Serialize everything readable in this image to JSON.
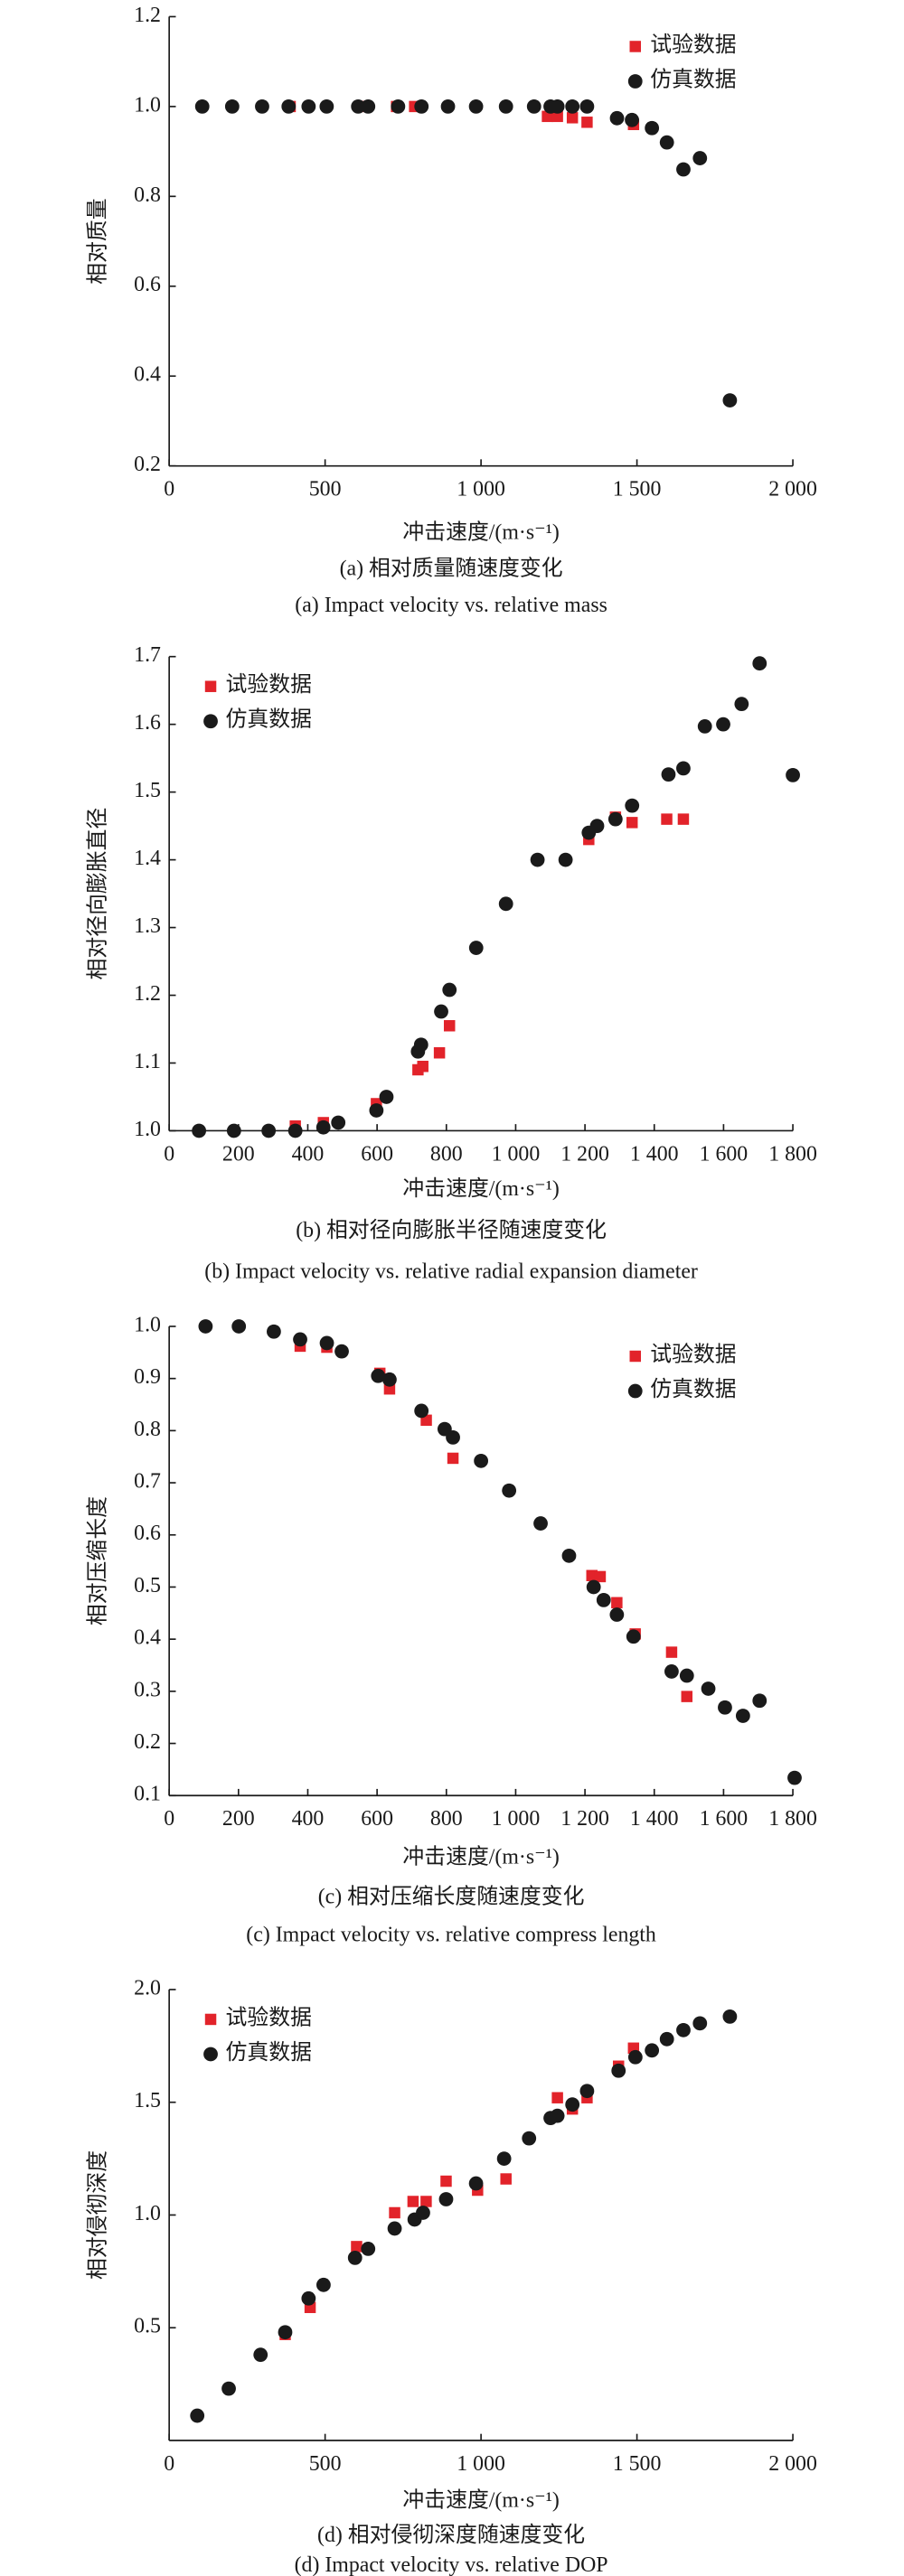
{
  "chart_data": [
    {
      "type": "scatter",
      "title": "(a) 相对质量随速度变化",
      "subtitle": "(a) Impact velocity vs. relative mass",
      "x_label": "冲击速度/(m·s⁻¹)",
      "y_label": "相对质量",
      "legend": "upper right",
      "xlim": [
        0,
        2000
      ],
      "xticks": [
        0,
        500,
        {
          "value": 1000,
          "label": "1 000"
        },
        {
          "value": 1500,
          "label": "1 500"
        },
        {
          "value": 2000,
          "label": "2 000"
        }
      ],
      "ylim": [
        0.2,
        1.2
      ],
      "yticks": [
        0.2,
        0.4,
        0.6,
        0.8,
        {
          "value": 1,
          "label": "1.0"
        },
        1.2
      ],
      "series": [
        {
          "name": "试验数据",
          "color": "#e2232a",
          "marker": "square",
          "x": [
            388,
            628,
            729,
            787,
            1213,
            1245,
            1293,
            1340,
            1489
          ],
          "values": [
            1.0,
            1.0,
            1.0,
            1.0,
            0.978,
            0.978,
            0.975,
            0.965,
            0.96
          ]
        },
        {
          "name": "仿真数据",
          "color": "#1a1a1a",
          "marker": "circle",
          "x": [
            106,
            202,
            298,
            383,
            447,
            505,
            606,
            638,
            734,
            809,
            894,
            984,
            1080,
            1170,
            1223,
            1245,
            1293,
            1340,
            1436,
            1484,
            1548,
            1596,
            1649,
            1702,
            1798
          ],
          "values": [
            1.0,
            1.0,
            1.0,
            1.0,
            1.0,
            1.0,
            1.0,
            1.0,
            1.0,
            1.0,
            1.0,
            1.0,
            1.0,
            1.0,
            1.0,
            1.0,
            1.0,
            1.0,
            0.974,
            0.97,
            0.952,
            0.92,
            0.86,
            0.885,
            0.346
          ]
        }
      ]
    },
    {
      "type": "scatter",
      "title": "(b) 相对径向膨胀半径随速度变化",
      "subtitle": "(b) Impact velocity vs. relative radial expansion diameter",
      "x_label": "冲击速度/(m·s⁻¹)",
      "y_label": "相对径向膨胀直径",
      "legend": "upper left",
      "xlim": [
        0,
        1800
      ],
      "xticks": [
        0,
        200,
        400,
        600,
        800,
        {
          "value": 1000,
          "label": "1 000"
        },
        {
          "value": 1200,
          "label": "1 200"
        },
        {
          "value": 1400,
          "label": "1 400"
        },
        {
          "value": 1600,
          "label": "1 600"
        },
        {
          "value": 1800,
          "label": "1 800"
        }
      ],
      "ylim": [
        1.0,
        1.7
      ],
      "yticks": [
        {
          "value": 1,
          "label": "1.0"
        },
        1.1,
        1.2,
        1.3,
        1.4,
        1.5,
        1.6,
        1.7
      ],
      "series": [
        {
          "name": "试验数据",
          "color": "#e2232a",
          "marker": "square",
          "x": [
            364,
            445,
            598,
            718,
            732,
            780,
            809,
            1211,
            1288,
            1336,
            1436,
            1484
          ],
          "values": [
            1.007,
            1.012,
            1.04,
            1.09,
            1.095,
            1.115,
            1.155,
            1.43,
            1.463,
            1.455,
            1.46,
            1.46
          ]
        },
        {
          "name": "仿真数据",
          "color": "#1a1a1a",
          "marker": "circle",
          "x": [
            86,
            187,
            287,
            364,
            445,
            488,
            598,
            627,
            718,
            727,
            785,
            809,
            886,
            972,
            1063,
            1144,
            1211,
            1235,
            1288,
            1336,
            1441,
            1484,
            1546,
            1599,
            1652,
            1704,
            1800
          ],
          "values": [
            1.0,
            1.0,
            1.0,
            1.0,
            1.005,
            1.012,
            1.03,
            1.05,
            1.117,
            1.127,
            1.176,
            1.208,
            1.27,
            1.335,
            1.4,
            1.4,
            1.44,
            1.45,
            1.46,
            1.48,
            1.526,
            1.535,
            1.597,
            1.6,
            1.63,
            1.69,
            1.525
          ]
        }
      ]
    },
    {
      "type": "scatter",
      "title": "(c) 相对压缩长度随速度变化",
      "subtitle": "(c) Impact velocity vs. relative compress length",
      "x_label": "冲击速度/(m·s⁻¹)",
      "y_label": "相对压缩长度",
      "legend": "upper right",
      "xlim": [
        0,
        1800
      ],
      "xticks": [
        0,
        200,
        400,
        600,
        800,
        {
          "value": 1000,
          "label": "1 000"
        },
        {
          "value": 1200,
          "label": "1 200"
        },
        {
          "value": 1400,
          "label": "1 400"
        },
        {
          "value": 1600,
          "label": "1 600"
        },
        {
          "value": 1800,
          "label": "1 800"
        }
      ],
      "ylim": [
        0.1,
        1.0
      ],
      "yticks": [
        0.1,
        0.2,
        0.3,
        0.4,
        0.5,
        0.6,
        0.7,
        0.8,
        0.9,
        {
          "value": 1,
          "label": "1.0"
        }
      ],
      "series": [
        {
          "name": "试验数据",
          "color": "#e2232a",
          "marker": "square",
          "x": [
            378,
            455,
            608,
            636,
            742,
            819,
            1220,
            1244,
            1292,
            1345,
            1450,
            1494
          ],
          "values": [
            0.962,
            0.96,
            0.91,
            0.88,
            0.82,
            0.747,
            0.522,
            0.52,
            0.47,
            0.41,
            0.375,
            0.29
          ]
        },
        {
          "name": "仿真数据",
          "color": "#1a1a1a",
          "marker": "circle",
          "x": [
            105,
            201,
            302,
            378,
            455,
            498,
            603,
            636,
            728,
            795,
            819,
            900,
            981,
            1072,
            1154,
            1225,
            1254,
            1292,
            1340,
            1450,
            1494,
            1556,
            1604,
            1656,
            1704,
            1805
          ],
          "values": [
            1.0,
            1.0,
            0.99,
            0.975,
            0.968,
            0.952,
            0.905,
            0.898,
            0.838,
            0.803,
            0.787,
            0.742,
            0.685,
            0.622,
            0.56,
            0.5,
            0.475,
            0.447,
            0.405,
            0.338,
            0.33,
            0.305,
            0.269,
            0.253,
            0.282,
            0.134
          ]
        }
      ]
    },
    {
      "type": "scatter",
      "title": "(d) 相对侵彻深度随速度变化",
      "subtitle": "(d) Impact velocity vs. relative DOP",
      "x_label": "冲击速度/(m·s⁻¹)",
      "y_label": "相对侵彻深度",
      "legend": "upper left",
      "xlim": [
        0,
        2000
      ],
      "xticks": [
        0,
        500,
        {
          "value": 1000,
          "label": "1 000"
        },
        {
          "value": 1500,
          "label": "1 500"
        },
        {
          "value": 2000,
          "label": "2 000"
        }
      ],
      "ylim": [
        0,
        2
      ],
      "yticks": [
        0.5,
        {
          "value": 1,
          "label": "1.0"
        },
        1.5,
        {
          "value": 2,
          "label": "2.0"
        }
      ],
      "series": [
        {
          "name": "试验数据",
          "color": "#e2232a",
          "marker": "square",
          "x": [
            372,
            452,
            601,
            723,
            782,
            824,
            888,
            989,
            1080,
            1245,
            1293,
            1340,
            1441,
            1489
          ],
          "values": [
            0.47,
            0.59,
            0.86,
            1.01,
            1.06,
            1.06,
            1.15,
            1.11,
            1.16,
            1.52,
            1.47,
            1.52,
            1.66,
            1.74
          ]
        },
        {
          "name": "仿真数据",
          "color": "#1a1a1a",
          "marker": "circle",
          "x": [
            90,
            191,
            293,
            372,
            447,
            495,
            596,
            638,
            723,
            787,
            814,
            888,
            984,
            1074,
            1154,
            1223,
            1245,
            1293,
            1340,
            1441,
            1495,
            1548,
            1596,
            1649,
            1702,
            1798
          ],
          "values": [
            0.11,
            0.23,
            0.38,
            0.48,
            0.63,
            0.69,
            0.81,
            0.85,
            0.94,
            0.98,
            1.01,
            1.07,
            1.14,
            1.25,
            1.34,
            1.43,
            1.44,
            1.49,
            1.55,
            1.64,
            1.7,
            1.73,
            1.78,
            1.82,
            1.85,
            1.88
          ]
        }
      ]
    }
  ]
}
